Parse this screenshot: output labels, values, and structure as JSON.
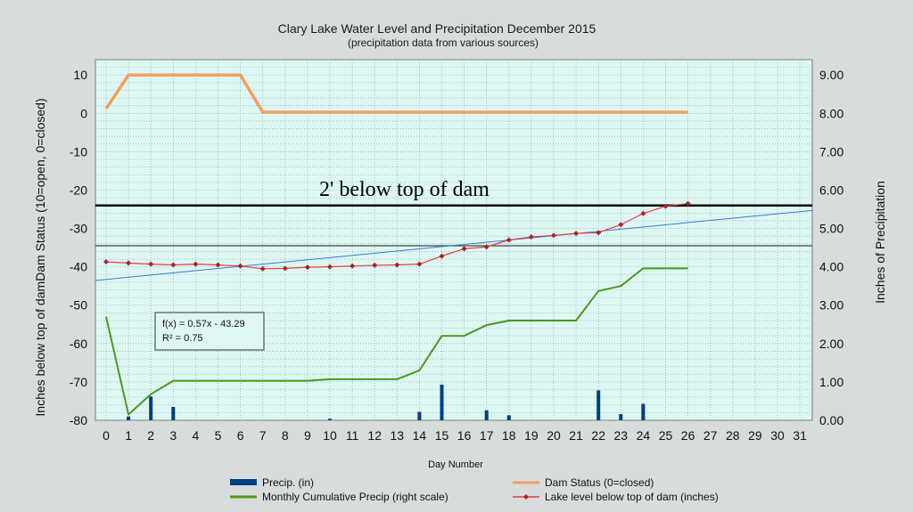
{
  "chart_data": {
    "type": "line",
    "title": "Clary Lake Water Level and Precipitation December 2015",
    "subtitle": "(precipitation data from various sources)",
    "xlabel": "Day Number",
    "ylabel_left": "Inches  below top of  damDam Status (10=open, 0=closed)",
    "ylabel_right": "Inches  of  Precipitation",
    "xlim": [
      0,
      31
    ],
    "ylim_left": [
      -80,
      14
    ],
    "ylim_right": [
      0,
      9.4
    ],
    "x_ticks": [
      0,
      1,
      2,
      3,
      4,
      5,
      6,
      7,
      8,
      9,
      10,
      11,
      12,
      13,
      14,
      15,
      16,
      17,
      18,
      19,
      20,
      21,
      22,
      23,
      24,
      25,
      26,
      27,
      28,
      29,
      30,
      31
    ],
    "y_ticks_left": [
      10,
      0,
      -10,
      -20,
      -30,
      -40,
      -50,
      -60,
      -70,
      -80
    ],
    "y_ticks_right": [
      "9.00",
      "8.00",
      "7.00",
      "6.00",
      "5.00",
      "4.00",
      "3.00",
      "2.00",
      "1.00",
      "0.00"
    ],
    "grid": true,
    "legend_position": "bottom",
    "annotation": {
      "text": "2' below top of dam",
      "y": -24
    },
    "reference_line_y": -34.5,
    "trendline": {
      "equation": "f(x) = 0.57x - 43.29",
      "r2": "R² = 0.75",
      "slope": 0.57,
      "intercept": -43.29
    },
    "series": [
      {
        "name": "Precip. (in)",
        "kind": "bar",
        "axis": "right",
        "color": "#003f7f",
        "x": [
          1,
          2,
          3,
          10,
          14,
          15,
          17,
          18,
          22,
          23,
          24
        ],
        "values": [
          0.1,
          0.62,
          0.35,
          0.04,
          0.22,
          0.93,
          0.26,
          0.13,
          0.78,
          0.16,
          0.43
        ]
      },
      {
        "name": "Dam Status (0=closed)",
        "kind": "line",
        "axis": "left",
        "color": "#f0a060",
        "x": [
          0,
          1,
          2,
          3,
          4,
          5,
          6,
          7,
          8,
          9,
          10,
          11,
          12,
          13,
          14,
          15,
          16,
          17,
          18,
          19,
          20,
          21,
          22,
          23,
          24,
          25,
          26
        ],
        "values": [
          1.2,
          10,
          10,
          10,
          10,
          10,
          10,
          0.3,
          0.3,
          0.3,
          0.3,
          0.3,
          0.3,
          0.3,
          0.3,
          0.3,
          0.3,
          0.3,
          0.3,
          0.3,
          0.3,
          0.3,
          0.3,
          0.3,
          0.3,
          0.3,
          0.3
        ]
      },
      {
        "name": "Monthly Cumulative Precip (right scale)",
        "kind": "line",
        "axis": "right",
        "color": "#4a9a1a",
        "x": [
          0,
          1,
          2,
          3,
          4,
          5,
          6,
          7,
          8,
          9,
          10,
          11,
          12,
          13,
          14,
          15,
          16,
          17,
          18,
          19,
          20,
          21,
          22,
          23,
          24,
          25,
          26
        ],
        "values": [
          2.7,
          0.15,
          0.68,
          1.03,
          1.03,
          1.03,
          1.03,
          1.03,
          1.03,
          1.03,
          1.07,
          1.07,
          1.07,
          1.07,
          1.3,
          2.2,
          2.2,
          2.48,
          2.6,
          2.6,
          2.6,
          2.6,
          3.37,
          3.5,
          3.96,
          3.96,
          3.96
        ]
      },
      {
        "name": "Lake level below top of dam (inches)",
        "kind": "line-marker",
        "axis": "left",
        "color": "#e04040",
        "marker_color": "#b02020",
        "x": [
          0,
          1,
          2,
          3,
          4,
          5,
          6,
          7,
          8,
          9,
          10,
          11,
          12,
          13,
          14,
          15,
          16,
          17,
          18,
          19,
          20,
          21,
          22,
          23,
          24,
          25,
          26
        ],
        "values": [
          -38.7,
          -39,
          -39.3,
          -39.5,
          -39.3,
          -39.5,
          -39.8,
          -40.5,
          -40.4,
          -40.1,
          -40.0,
          -39.8,
          -39.6,
          -39.5,
          -39.3,
          -37.2,
          -35.3,
          -34.8,
          -33.0,
          -32.2,
          -31.8,
          -31.3,
          -31.1,
          -29.0,
          -26.1,
          -24.2,
          -23.5
        ]
      }
    ]
  }
}
